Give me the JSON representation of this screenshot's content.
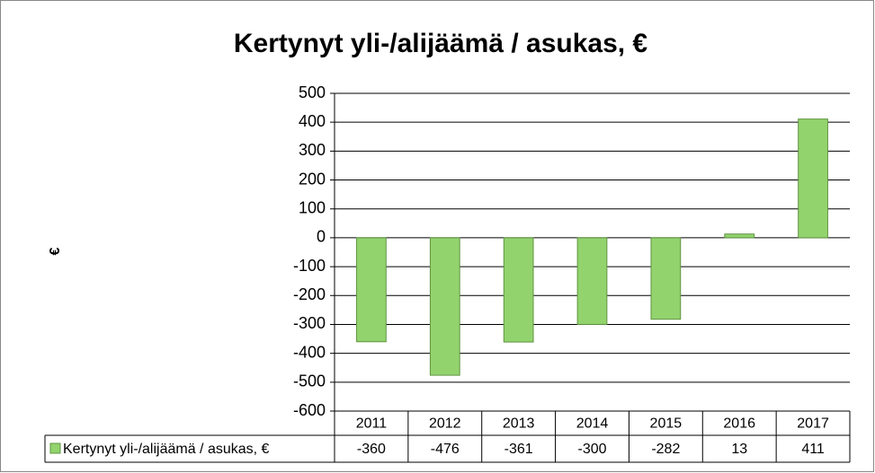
{
  "chart_data": {
    "type": "bar",
    "title": "Kertynyt yli-/alijäämä / asukas, €",
    "ylabel": "€",
    "categories": [
      "2011",
      "2012",
      "2013",
      "2014",
      "2015",
      "2016",
      "2017"
    ],
    "series": [
      {
        "name": "Kertynyt yli-/alijäämä / asukas, €",
        "color": "#92d36e",
        "values": [
          -360,
          -476,
          -361,
          -300,
          -282,
          13,
          411
        ]
      }
    ],
    "ylim": [
      -600,
      500
    ],
    "yticks": [
      -600,
      -500,
      -400,
      -300,
      -200,
      -100,
      0,
      100,
      200,
      300,
      400,
      500
    ],
    "grid": true
  }
}
